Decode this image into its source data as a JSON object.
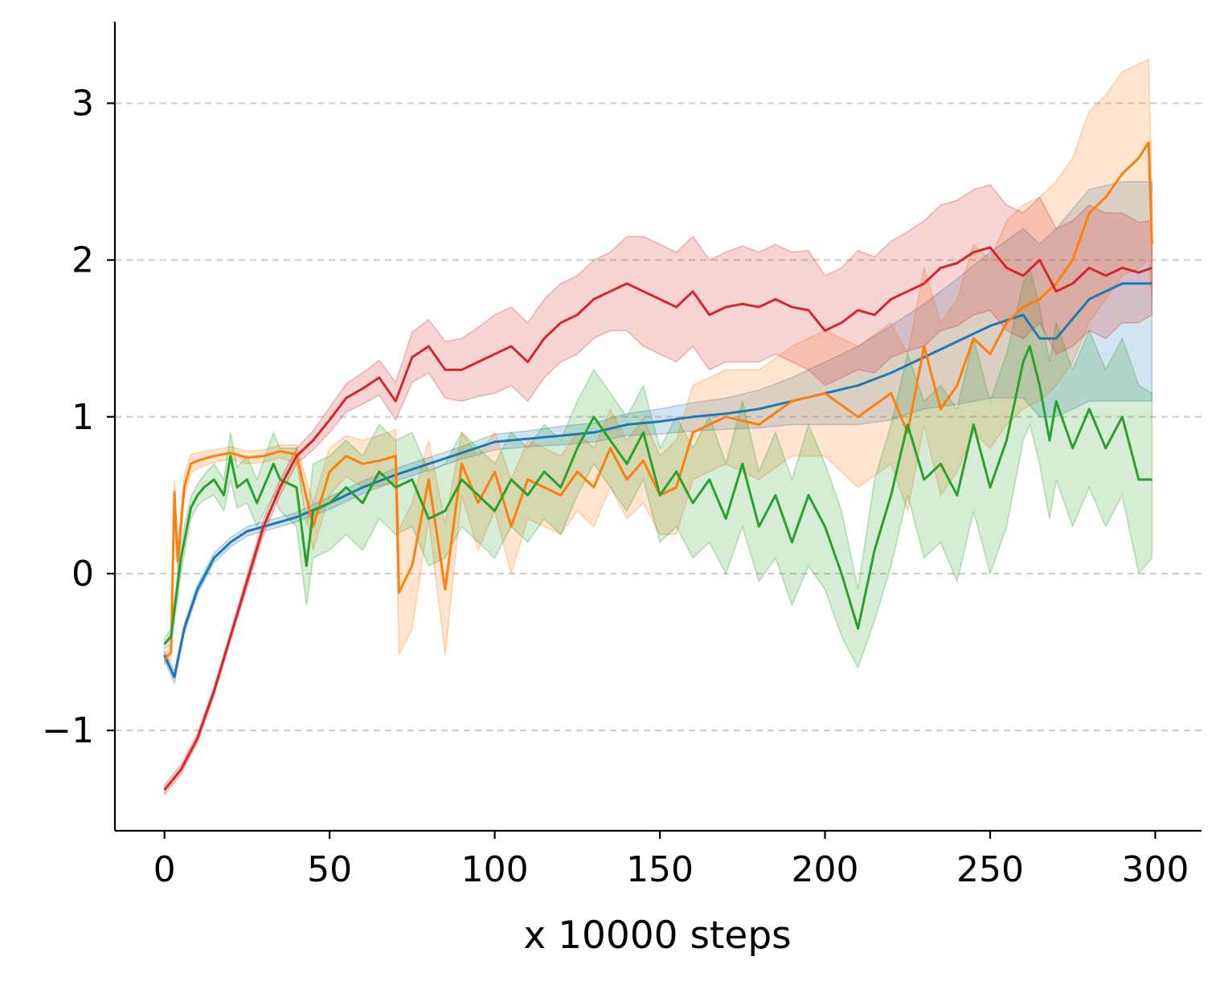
{
  "chart_data": {
    "type": "line",
    "title": "",
    "xlabel": "x 10000 steps",
    "ylabel": "",
    "xlim": [
      -15,
      314
    ],
    "ylim": [
      -1.64,
      3.52
    ],
    "xticks": [
      0,
      50,
      100,
      150,
      200,
      250,
      300
    ],
    "xtick_labels": [
      "0",
      "50",
      "100",
      "150",
      "200",
      "250",
      "300"
    ],
    "yticks": [
      -1,
      0,
      1,
      2,
      3
    ],
    "ytick_labels": [
      "−1",
      "0",
      "1",
      "2",
      "3"
    ],
    "grid": "horizontal dashed",
    "legend": "none",
    "series": [
      {
        "color": "#1f77b4",
        "x": [
          0,
          3,
          6,
          10,
          15,
          20,
          25,
          30,
          40,
          50,
          60,
          70,
          80,
          90,
          100,
          110,
          120,
          130,
          140,
          150,
          160,
          170,
          180,
          190,
          200,
          210,
          220,
          230,
          240,
          250,
          260,
          265,
          270,
          280,
          290,
          299
        ],
        "y": [
          -0.52,
          -0.66,
          -0.35,
          -0.1,
          0.1,
          0.2,
          0.27,
          0.3,
          0.36,
          0.45,
          0.55,
          0.63,
          0.7,
          0.77,
          0.84,
          0.86,
          0.88,
          0.9,
          0.95,
          0.97,
          1.0,
          1.02,
          1.05,
          1.1,
          1.15,
          1.2,
          1.28,
          1.38,
          1.48,
          1.58,
          1.65,
          1.5,
          1.5,
          1.75,
          1.85,
          1.85
        ],
        "lower": [
          -0.55,
          -0.7,
          -0.38,
          -0.13,
          0.07,
          0.17,
          0.24,
          0.27,
          0.33,
          0.41,
          0.51,
          0.59,
          0.66,
          0.73,
          0.79,
          0.81,
          0.82,
          0.84,
          0.88,
          0.89,
          0.91,
          0.92,
          0.93,
          0.95,
          0.95,
          0.95,
          0.98,
          1.05,
          1.08,
          1.12,
          1.12,
          1.0,
          1.0,
          1.1,
          1.1,
          1.1
        ],
        "upper": [
          -0.49,
          -0.62,
          -0.32,
          -0.07,
          0.13,
          0.23,
          0.3,
          0.33,
          0.39,
          0.49,
          0.59,
          0.67,
          0.74,
          0.81,
          0.89,
          0.91,
          0.94,
          0.96,
          1.02,
          1.05,
          1.09,
          1.12,
          1.17,
          1.25,
          1.35,
          1.45,
          1.58,
          1.72,
          1.88,
          2.05,
          2.2,
          2.1,
          2.2,
          2.45,
          2.5,
          2.5
        ]
      },
      {
        "color": "#ff7f0e",
        "x": [
          0,
          2,
          3,
          4,
          6,
          8,
          10,
          15,
          20,
          25,
          30,
          35,
          40,
          45,
          50,
          55,
          60,
          65,
          70,
          71,
          75,
          80,
          85,
          90,
          95,
          100,
          105,
          110,
          115,
          120,
          125,
          130,
          135,
          140,
          145,
          150,
          155,
          160,
          170,
          180,
          190,
          200,
          210,
          220,
          225,
          230,
          235,
          240,
          245,
          250,
          255,
          260,
          265,
          270,
          275,
          280,
          285,
          290,
          295,
          298,
          299
        ],
        "y": [
          -0.55,
          -0.5,
          0.52,
          0.08,
          0.55,
          0.7,
          0.72,
          0.75,
          0.77,
          0.74,
          0.75,
          0.78,
          0.76,
          0.3,
          0.65,
          0.75,
          0.7,
          0.72,
          0.75,
          -0.12,
          0.05,
          0.6,
          -0.1,
          0.7,
          0.45,
          0.65,
          0.3,
          0.6,
          0.55,
          0.5,
          0.65,
          0.55,
          0.8,
          0.6,
          0.72,
          0.5,
          0.55,
          0.9,
          1.0,
          0.95,
          1.1,
          1.15,
          1.0,
          1.15,
          0.9,
          1.45,
          1.05,
          1.2,
          1.5,
          1.4,
          1.6,
          1.7,
          1.75,
          1.85,
          2.0,
          2.3,
          2.4,
          2.55,
          2.65,
          2.75,
          2.1
        ],
        "lower": [
          -0.58,
          -0.55,
          0.45,
          0.0,
          0.48,
          0.64,
          0.67,
          0.71,
          0.73,
          0.7,
          0.71,
          0.74,
          0.7,
          0.15,
          0.5,
          0.62,
          0.55,
          0.56,
          0.58,
          -0.52,
          -0.35,
          0.35,
          -0.52,
          0.5,
          0.15,
          0.4,
          0.0,
          0.35,
          0.3,
          0.25,
          0.4,
          0.3,
          0.55,
          0.35,
          0.45,
          0.25,
          0.25,
          0.6,
          0.7,
          0.6,
          0.75,
          0.75,
          0.55,
          0.7,
          0.4,
          0.95,
          0.5,
          0.65,
          0.9,
          0.8,
          0.95,
          1.05,
          1.1,
          1.2,
          1.35,
          1.6,
          1.75,
          1.9,
          1.95,
          2.0,
          1.75
        ],
        "upper": [
          -0.52,
          -0.45,
          0.6,
          0.16,
          0.62,
          0.76,
          0.77,
          0.79,
          0.81,
          0.78,
          0.79,
          0.82,
          0.82,
          0.45,
          0.8,
          0.88,
          0.85,
          0.88,
          0.92,
          0.28,
          0.45,
          0.85,
          0.32,
          0.9,
          0.75,
          0.9,
          0.6,
          0.85,
          0.8,
          0.75,
          0.9,
          0.8,
          1.05,
          0.85,
          0.99,
          0.75,
          0.85,
          1.2,
          1.3,
          1.3,
          1.45,
          1.55,
          1.45,
          1.6,
          1.4,
          1.95,
          1.6,
          1.75,
          2.1,
          2.0,
          2.25,
          2.35,
          2.4,
          2.5,
          2.65,
          2.95,
          3.05,
          3.2,
          3.25,
          3.28,
          2.45
        ]
      },
      {
        "color": "#2ca02c",
        "x": [
          0,
          2,
          5,
          8,
          10,
          12,
          15,
          18,
          20,
          22,
          25,
          28,
          30,
          33,
          35,
          40,
          43,
          45,
          50,
          55,
          60,
          65,
          70,
          75,
          80,
          85,
          90,
          95,
          100,
          105,
          110,
          115,
          120,
          125,
          130,
          135,
          140,
          145,
          150,
          155,
          160,
          165,
          170,
          175,
          180,
          185,
          190,
          195,
          200,
          205,
          210,
          215,
          220,
          225,
          230,
          235,
          240,
          245,
          250,
          255,
          260,
          262,
          265,
          268,
          270,
          275,
          280,
          285,
          290,
          295,
          299
        ],
        "y": [
          -0.45,
          -0.4,
          0.1,
          0.42,
          0.5,
          0.55,
          0.6,
          0.5,
          0.75,
          0.55,
          0.6,
          0.45,
          0.55,
          0.7,
          0.6,
          0.55,
          0.05,
          0.4,
          0.45,
          0.55,
          0.45,
          0.65,
          0.55,
          0.6,
          0.35,
          0.4,
          0.6,
          0.5,
          0.4,
          0.6,
          0.5,
          0.65,
          0.55,
          0.8,
          1.0,
          0.85,
          0.7,
          0.9,
          0.5,
          0.65,
          0.45,
          0.6,
          0.35,
          0.7,
          0.3,
          0.5,
          0.2,
          0.5,
          0.3,
          0.0,
          -0.35,
          0.15,
          0.5,
          0.95,
          0.6,
          0.7,
          0.5,
          0.95,
          0.55,
          0.85,
          1.35,
          1.45,
          1.2,
          0.85,
          1.1,
          0.8,
          1.05,
          0.8,
          1.0,
          0.6,
          0.6
        ],
        "lower": [
          -0.48,
          -0.45,
          0.0,
          0.35,
          0.43,
          0.47,
          0.5,
          0.4,
          0.6,
          0.42,
          0.45,
          0.3,
          0.38,
          0.5,
          0.4,
          0.3,
          -0.2,
          0.1,
          0.15,
          0.25,
          0.15,
          0.35,
          0.25,
          0.3,
          0.05,
          0.1,
          0.3,
          0.2,
          0.1,
          0.3,
          0.2,
          0.35,
          0.25,
          0.5,
          0.7,
          0.55,
          0.4,
          0.6,
          0.2,
          0.3,
          0.1,
          0.2,
          0.0,
          0.3,
          -0.05,
          0.1,
          -0.2,
          0.05,
          -0.1,
          -0.4,
          -0.6,
          -0.3,
          0.05,
          0.5,
          0.1,
          0.2,
          -0.05,
          0.4,
          0.0,
          0.3,
          0.85,
          0.95,
          0.7,
          0.35,
          0.6,
          0.3,
          0.55,
          0.3,
          0.5,
          0.0,
          0.1
        ],
        "upper": [
          -0.42,
          -0.35,
          0.2,
          0.49,
          0.57,
          0.63,
          0.7,
          0.6,
          0.9,
          0.68,
          0.75,
          0.6,
          0.72,
          0.9,
          0.8,
          0.8,
          0.3,
          0.7,
          0.75,
          0.85,
          0.75,
          0.95,
          0.85,
          0.9,
          0.65,
          0.7,
          0.9,
          0.8,
          0.7,
          0.9,
          0.8,
          0.95,
          0.85,
          1.1,
          1.3,
          1.15,
          1.0,
          1.2,
          0.8,
          1.0,
          0.8,
          1.0,
          0.7,
          1.1,
          0.65,
          0.9,
          0.6,
          0.95,
          0.7,
          0.4,
          -0.1,
          0.6,
          0.95,
          1.4,
          1.1,
          1.2,
          1.05,
          1.5,
          1.1,
          1.4,
          1.85,
          1.95,
          1.7,
          1.35,
          1.6,
          1.3,
          1.55,
          1.3,
          1.5,
          1.2,
          1.15
        ]
      },
      {
        "color": "#d62728",
        "x": [
          0,
          5,
          10,
          15,
          20,
          25,
          30,
          35,
          40,
          45,
          50,
          55,
          60,
          65,
          70,
          75,
          80,
          85,
          90,
          95,
          100,
          105,
          110,
          115,
          120,
          125,
          130,
          135,
          140,
          145,
          150,
          155,
          160,
          165,
          170,
          175,
          180,
          185,
          190,
          195,
          200,
          205,
          210,
          215,
          220,
          225,
          230,
          235,
          240,
          245,
          250,
          255,
          260,
          265,
          270,
          275,
          280,
          285,
          290,
          295,
          299
        ],
        "y": [
          -1.38,
          -1.25,
          -1.05,
          -0.75,
          -0.4,
          -0.05,
          0.3,
          0.55,
          0.75,
          0.85,
          0.98,
          1.12,
          1.18,
          1.25,
          1.1,
          1.38,
          1.45,
          1.3,
          1.3,
          1.35,
          1.4,
          1.45,
          1.35,
          1.5,
          1.6,
          1.65,
          1.75,
          1.8,
          1.85,
          1.8,
          1.75,
          1.7,
          1.8,
          1.65,
          1.7,
          1.72,
          1.7,
          1.75,
          1.7,
          1.68,
          1.55,
          1.6,
          1.68,
          1.65,
          1.75,
          1.8,
          1.85,
          1.95,
          1.98,
          2.05,
          2.08,
          1.95,
          1.9,
          2.0,
          1.8,
          1.85,
          1.95,
          1.9,
          1.95,
          1.92,
          1.95
        ],
        "lower": [
          -1.41,
          -1.28,
          -1.08,
          -0.78,
          -0.43,
          -0.09,
          0.25,
          0.5,
          0.7,
          0.79,
          0.9,
          1.03,
          1.08,
          1.14,
          0.98,
          1.22,
          1.28,
          1.12,
          1.1,
          1.13,
          1.15,
          1.2,
          1.1,
          1.25,
          1.35,
          1.4,
          1.5,
          1.55,
          1.55,
          1.45,
          1.4,
          1.35,
          1.45,
          1.3,
          1.35,
          1.35,
          1.35,
          1.4,
          1.35,
          1.3,
          1.2,
          1.25,
          1.3,
          1.28,
          1.38,
          1.42,
          1.45,
          1.55,
          1.58,
          1.65,
          1.68,
          1.55,
          1.5,
          1.6,
          1.4,
          1.45,
          1.55,
          1.5,
          1.6,
          1.6,
          1.65
        ],
        "upper": [
          -1.35,
          -1.22,
          -1.02,
          -0.72,
          -0.37,
          -0.01,
          0.35,
          0.6,
          0.8,
          0.91,
          1.06,
          1.21,
          1.28,
          1.36,
          1.22,
          1.54,
          1.62,
          1.48,
          1.5,
          1.57,
          1.65,
          1.7,
          1.6,
          1.75,
          1.85,
          1.9,
          2.0,
          2.05,
          2.15,
          2.15,
          2.1,
          2.05,
          2.15,
          2.0,
          2.05,
          2.09,
          2.05,
          2.1,
          2.05,
          2.06,
          1.9,
          1.95,
          2.06,
          2.02,
          2.12,
          2.18,
          2.25,
          2.35,
          2.38,
          2.45,
          2.48,
          2.35,
          2.3,
          2.4,
          2.2,
          2.25,
          2.35,
          2.3,
          2.3,
          2.24,
          2.25
        ]
      }
    ]
  }
}
